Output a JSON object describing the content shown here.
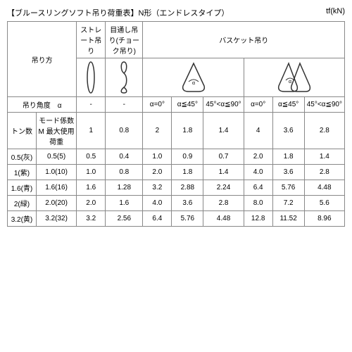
{
  "title": "【ブルースリングソフト吊り荷重表】N形（エンドレスタイプ）",
  "unit": "tf(kN)",
  "headers": {
    "method": "吊り方",
    "straight": "ストレート吊り",
    "choke": "目通し吊り(チョーク吊り)",
    "basket": "バスケット吊り",
    "angle": "吊り角度　α",
    "dash": "-",
    "a0": "α=0°",
    "a45": "α≦45°",
    "a90": "45°<α≦90°",
    "ton": "トン数",
    "mode": "モード係数M 最大使用荷重",
    "f1": "1",
    "f08": "0.8",
    "f2": "2",
    "f18": "1.8",
    "f14": "1.4",
    "f4": "4",
    "f36": "3.6",
    "f28": "2.8"
  },
  "rows": [
    {
      "ton": "0.5(灰)",
      "mode": "0.5(5)",
      "v": [
        "0.5",
        "0.4",
        "1.0",
        "0.9",
        "0.7",
        "2.0",
        "1.8",
        "1.4"
      ]
    },
    {
      "ton": "1(紫)",
      "mode": "1.0(10)",
      "v": [
        "1.0",
        "0.8",
        "2.0",
        "1.8",
        "1.4",
        "4.0",
        "3.6",
        "2.8"
      ]
    },
    {
      "ton": "1.6(青)",
      "mode": "1.6(16)",
      "v": [
        "1.6",
        "1.28",
        "3.2",
        "2.88",
        "2.24",
        "6.4",
        "5.76",
        "4.48"
      ]
    },
    {
      "ton": "2(緑)",
      "mode": "2.0(20)",
      "v": [
        "2.0",
        "1.6",
        "4.0",
        "3.6",
        "2.8",
        "8.0",
        "7.2",
        "5.6"
      ]
    },
    {
      "ton": "3.2(黄)",
      "mode": "3.2(32)",
      "v": [
        "3.2",
        "2.56",
        "6.4",
        "5.76",
        "4.48",
        "12.8",
        "11.52",
        "8.96"
      ]
    }
  ],
  "style": {
    "border_color": "#888888",
    "background": "#ffffff",
    "font_size": 10
  }
}
